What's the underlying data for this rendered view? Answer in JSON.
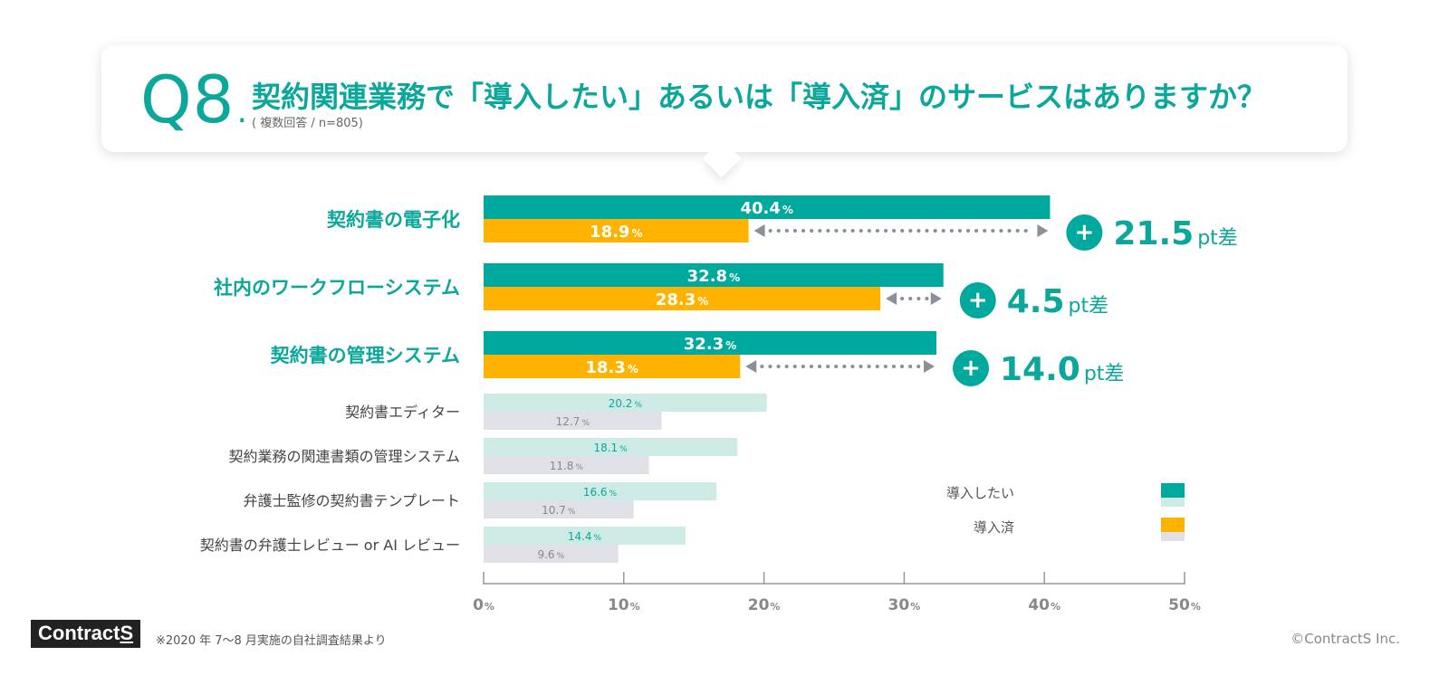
{
  "header": {
    "q_number": "Q8",
    "q_dot": ".",
    "question": "契約関連業務で「導入したい」あるいは「導入済」のサービスはありますか？",
    "subnote": "( 複数回答 / n=805)"
  },
  "chart_data": {
    "type": "bar",
    "orientation": "horizontal",
    "categories": [
      "契約書の電子化",
      "社内のワークフローシステム",
      "契約書の管理システム",
      "契約書エディター",
      "契約業務の関連書類の管理システム",
      "弁護士監修の契約書テンプレート",
      "契約書の弁護士レビュー or AI レビュー"
    ],
    "series": [
      {
        "name": "導入したい",
        "values": [
          40.4,
          32.8,
          32.3,
          20.2,
          18.1,
          16.6,
          14.4
        ]
      },
      {
        "name": "導入済",
        "values": [
          18.9,
          28.3,
          18.3,
          12.7,
          11.8,
          10.7,
          9.6
        ]
      }
    ],
    "highlighted_count": 3,
    "differences": [
      {
        "sign": "+",
        "value": "21.5",
        "unit": "pt差"
      },
      {
        "sign": "+",
        "value": "4.5",
        "unit": "pt差"
      },
      {
        "sign": "+",
        "value": "14.0",
        "unit": "pt差"
      }
    ],
    "xlim": [
      0,
      50
    ],
    "xticks": [
      0,
      10,
      20,
      30,
      40,
      50
    ],
    "tick_suffix": "%",
    "value_suffix": "%",
    "legend_position": "bottom-right",
    "colors": {
      "series1": "#00a99d",
      "series2": "#ffb300",
      "series1_light": "#cdeae5",
      "series2_light": "#dfe1e6",
      "accent_text": "#0aa79a",
      "light_value_text": "#888888",
      "arrow": "#8a8f98",
      "axis": "#999999"
    }
  },
  "legend": {
    "items": [
      {
        "label": "導入したい"
      },
      {
        "label": "導入済"
      }
    ]
  },
  "footer": {
    "logo_main": "Contract",
    "logo_s": "S",
    "note": "※2020 年 7〜8 月実施の自社調査結果より",
    "copyright": "©ContractS Inc."
  }
}
